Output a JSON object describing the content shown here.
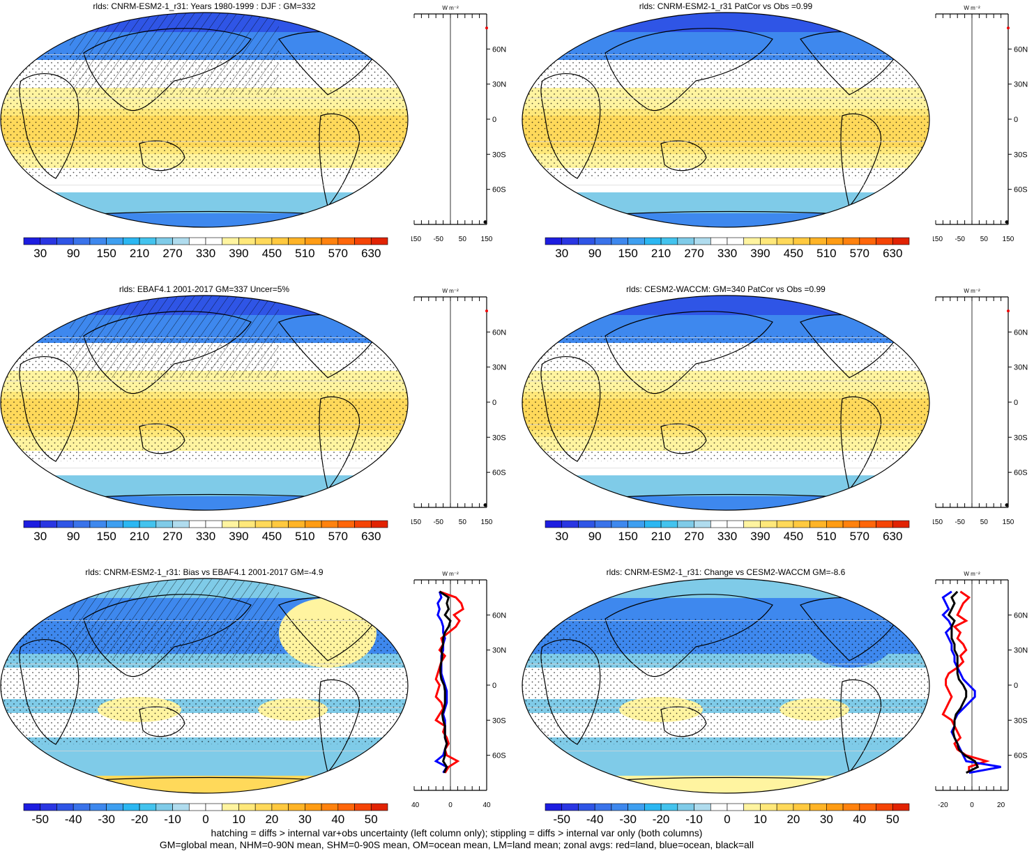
{
  "footer": {
    "line1": "hatching = diffs > internal var+obs uncertainty (left column only); stippling = diffs > internal var only (both columns)",
    "line2": "GM=global mean, NHM=0-90N mean, SHM=0-90S mean, OM=ocean mean, LM=land mean; zonal avgs: red=land, blue=ocean, black=all"
  },
  "zonal_axis": {
    "unit": "W m⁻²",
    "lat_labels": [
      "60N",
      "30N",
      "0",
      "30S",
      "60S"
    ]
  },
  "colorbars": {
    "absolute": {
      "labels": [
        "30",
        "90",
        "150",
        "210",
        "270",
        "330",
        "390",
        "450",
        "510",
        "570",
        "630"
      ],
      "colors": [
        "#1d1de0",
        "#2a36e2",
        "#2f55e6",
        "#3a73ea",
        "#3e88ee",
        "#3e9ff0",
        "#2bb7f2",
        "#43c3ee",
        "#7fcbe8",
        "#b0dcee",
        "#ffffff",
        "#ffffff",
        "#fff4a0",
        "#ffe87a",
        "#ffd95a",
        "#ffc93f",
        "#ffb427",
        "#ff9c14",
        "#ff820e",
        "#ff660a",
        "#f54406",
        "#e12303"
      ]
    },
    "difference": {
      "labels": [
        "-50",
        "-40",
        "-30",
        "-20",
        "-10",
        "0",
        "10",
        "20",
        "30",
        "40",
        "50"
      ],
      "colors": [
        "#1d1de0",
        "#2a36e2",
        "#2f55e6",
        "#3a73ea",
        "#3e88ee",
        "#3e9ff0",
        "#2bb7f2",
        "#43c3ee",
        "#7fcbe8",
        "#b0dcee",
        "#ffffff",
        "#ffffff",
        "#fff4a0",
        "#ffe87a",
        "#ffd95a",
        "#ffc93f",
        "#ffb427",
        "#ff9c14",
        "#ff820e",
        "#ff660a",
        "#f54406",
        "#e12303"
      ]
    }
  },
  "map_colors": {
    "deep_blue": "#2f55e6",
    "blue": "#3e88ee",
    "light_blue": "#7fcbe8",
    "white": "#ffffff",
    "pale_yellow": "#fff4a0",
    "yellow": "#ffe87a",
    "orange_yellow": "#ffd95a",
    "land_outline": "#000000"
  },
  "chart_data": [
    {
      "type": "heatmap",
      "title": "rlds: CNRM-ESM2-1_r31: Years 1980-1999 : DJF : GM=332",
      "colorbar": "absolute",
      "zonal_xticks": [
        "-150",
        "-50",
        "50",
        "150"
      ],
      "zonal_xlim": [
        -150,
        150
      ],
      "hatching": true,
      "stippling": true,
      "zonal_series": []
    },
    {
      "type": "heatmap",
      "title": "rlds: CNRM-ESM2-1_r31 PatCor vs Obs =0.99",
      "colorbar": "absolute",
      "zonal_xticks": [
        "-150",
        "-50",
        "50",
        "150"
      ],
      "zonal_xlim": [
        -150,
        150
      ],
      "hatching": false,
      "stippling": true,
      "zonal_series": []
    },
    {
      "type": "heatmap",
      "title": "rlds: EBAF4.1 2001-2017 GM=337 Uncer=5%",
      "colorbar": "absolute",
      "zonal_xticks": [
        "-150",
        "-50",
        "50",
        "150"
      ],
      "zonal_xlim": [
        -150,
        150
      ],
      "hatching": true,
      "stippling": true,
      "zonal_series": []
    },
    {
      "type": "heatmap",
      "title": "rlds: CESM2-WACCM: GM=340 PatCor vs Obs =0.99",
      "colorbar": "absolute",
      "zonal_xticks": [
        "-150",
        "-50",
        "50",
        "150"
      ],
      "zonal_xlim": [
        -150,
        150
      ],
      "hatching": false,
      "stippling": true,
      "zonal_series": []
    },
    {
      "type": "heatmap",
      "title": "rlds: CNRM-ESM2-1_r31: Bias vs EBAF4.1 2001-2017 GM=-4.9",
      "colorbar": "difference",
      "zonal_xticks": [
        "-40",
        "0",
        "40"
      ],
      "zonal_xlim": [
        -40,
        40
      ],
      "hatching": true,
      "stippling": true,
      "zonal_series": [
        {
          "color": "#ff0000",
          "lat": [
            80,
            75,
            70,
            65,
            60,
            55,
            50,
            45,
            40,
            35,
            30,
            25,
            20,
            15,
            10,
            5,
            0,
            -5,
            -10,
            -15,
            -20,
            -25,
            -30,
            -35,
            -40,
            -45,
            -50,
            -55,
            -60,
            -65,
            -70,
            -75
          ],
          "values": [
            -12,
            6,
            12,
            14,
            4,
            10,
            6,
            -2,
            -10,
            -8,
            -12,
            -6,
            -10,
            -12,
            -14,
            -16,
            -12,
            -14,
            -16,
            -10,
            -8,
            -12,
            -16,
            -6,
            -8,
            -4,
            -2,
            -6,
            -4,
            8,
            -2,
            -6
          ]
        },
        {
          "color": "#0000ff",
          "lat": [
            80,
            75,
            70,
            65,
            60,
            55,
            50,
            45,
            40,
            35,
            30,
            25,
            20,
            15,
            10,
            5,
            0,
            -5,
            -10,
            -15,
            -20,
            -25,
            -30,
            -35,
            -40,
            -45,
            -50,
            -55,
            -60,
            -65,
            -70,
            -75
          ],
          "values": [
            -12,
            -10,
            -14,
            -12,
            -14,
            -10,
            -8,
            -8,
            -6,
            -8,
            -8,
            -10,
            -10,
            -10,
            -10,
            -8,
            -6,
            -4,
            -4,
            -4,
            -6,
            -8,
            -6,
            -6,
            -6,
            -6,
            -4,
            -6,
            -8,
            -16,
            -4,
            -8
          ]
        },
        {
          "color": "#000000",
          "lat": [
            80,
            75,
            70,
            65,
            60,
            55,
            50,
            45,
            40,
            35,
            30,
            25,
            20,
            15,
            10,
            5,
            0,
            -5,
            -10,
            -15,
            -20,
            -25,
            -30,
            -35,
            -40,
            -45,
            -50,
            -55,
            -60,
            -65,
            -70,
            -75
          ],
          "values": [
            -12,
            -2,
            -4,
            -2,
            -6,
            0,
            -2,
            -6,
            -8,
            -8,
            -10,
            -9,
            -10,
            -11,
            -11,
            -10,
            -7,
            -6,
            -6,
            -6,
            -7,
            -9,
            -8,
            -6,
            -6,
            -6,
            -4,
            -6,
            -6,
            -8,
            -4,
            -7
          ]
        }
      ]
    },
    {
      "type": "heatmap",
      "title": "rlds: CNRM-ESM2-1_r31: Change vs CESM2-WACCM GM=-8.6",
      "colorbar": "difference",
      "zonal_xticks": [
        "-20",
        "0",
        "20"
      ],
      "zonal_xlim": [
        -25,
        25
      ],
      "hatching": false,
      "stippling": true,
      "zonal_series": [
        {
          "color": "#ff0000",
          "lat": [
            80,
            75,
            70,
            65,
            60,
            55,
            50,
            45,
            40,
            35,
            30,
            25,
            20,
            15,
            10,
            5,
            0,
            -5,
            -10,
            -15,
            -20,
            -25,
            -30,
            -35,
            -40,
            -45,
            -50,
            -55,
            -60,
            -65,
            -70,
            -75
          ],
          "values": [
            -8,
            -2,
            -6,
            -8,
            -10,
            -4,
            -12,
            -8,
            -10,
            -6,
            -4,
            -8,
            -6,
            -10,
            -16,
            -18,
            -18,
            -16,
            -14,
            -16,
            -18,
            -20,
            -14,
            -12,
            -10,
            -8,
            -12,
            -10,
            -4,
            10,
            -2,
            -2
          ]
        },
        {
          "color": "#0000ff",
          "lat": [
            80,
            75,
            70,
            65,
            60,
            55,
            50,
            45,
            40,
            35,
            30,
            25,
            20,
            15,
            10,
            5,
            0,
            -5,
            -10,
            -15,
            -20,
            -25,
            -30,
            -35,
            -40,
            -45,
            -50,
            -55,
            -60,
            -65,
            -70,
            -75
          ],
          "values": [
            -14,
            -20,
            -18,
            -16,
            -20,
            -16,
            -14,
            -18,
            -16,
            -14,
            -14,
            -12,
            -12,
            -10,
            -8,
            -6,
            -2,
            2,
            2,
            -2,
            -6,
            -10,
            -12,
            -12,
            -14,
            -12,
            -10,
            -8,
            -6,
            -4,
            20,
            -2
          ]
        },
        {
          "color": "#000000",
          "lat": [
            80,
            75,
            70,
            65,
            60,
            55,
            50,
            45,
            40,
            35,
            30,
            25,
            20,
            15,
            10,
            5,
            0,
            -5,
            -10,
            -15,
            -20,
            -25,
            -30,
            -35,
            -40,
            -45,
            -50,
            -55,
            -60,
            -65,
            -70,
            -75
          ],
          "values": [
            -10,
            -14,
            -12,
            -14,
            -16,
            -12,
            -14,
            -14,
            -14,
            -12,
            -12,
            -10,
            -10,
            -10,
            -10,
            -9,
            -6,
            -4,
            -4,
            -6,
            -8,
            -11,
            -12,
            -12,
            -13,
            -12,
            -10,
            -9,
            -5,
            2,
            4,
            -4
          ]
        }
      ]
    }
  ]
}
